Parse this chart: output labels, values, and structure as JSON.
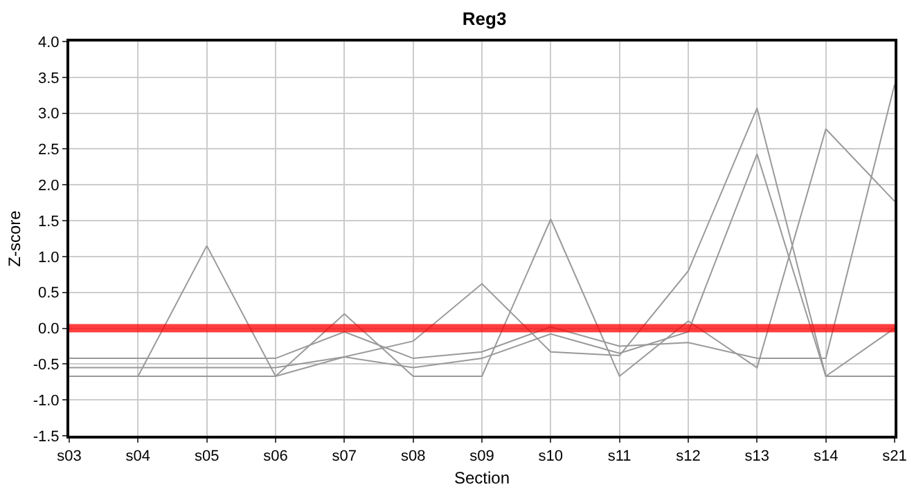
{
  "chart_data": {
    "type": "line",
    "title": "Reg3",
    "xlabel": "Section",
    "ylabel": "Z-score",
    "categories": [
      "s03",
      "s04",
      "s05",
      "s06",
      "s07",
      "s08",
      "s09",
      "s10",
      "s11",
      "s12",
      "s13",
      "s14",
      "s21"
    ],
    "series": [
      {
        "color": "#999999",
        "values": [
          -0.42,
          -0.42,
          -0.42,
          -0.42,
          -0.05,
          -0.42,
          -0.33,
          0.02,
          -0.25,
          -0.2,
          -0.42,
          -0.42,
          3.4
        ]
      },
      {
        "color": "#999999",
        "values": [
          -0.55,
          -0.55,
          -0.55,
          -0.55,
          -0.4,
          -0.55,
          -0.42,
          -0.08,
          -0.35,
          -0.05,
          2.43,
          -0.67,
          0.0
        ]
      },
      {
        "color": "#999999",
        "values": [
          -0.67,
          -0.67,
          1.15,
          -0.67,
          0.2,
          -0.67,
          -0.67,
          1.52,
          -0.67,
          0.1,
          -0.55,
          2.78,
          1.77
        ]
      },
      {
        "color": "#999999",
        "values": [
          -0.67,
          -0.67,
          -0.67,
          -0.67,
          -0.4,
          -0.18,
          0.62,
          -0.33,
          -0.38,
          0.8,
          3.07,
          -0.67,
          -0.67
        ]
      }
    ],
    "ylim": [
      -1.5,
      4.0
    ],
    "yticks": [
      {
        "value": -1.5,
        "label": "-1.5"
      },
      {
        "value": -1,
        "label": "-1.0"
      },
      {
        "value": -0.5,
        "label": "-0.5"
      },
      {
        "value": 0,
        "label": "0.0"
      },
      {
        "value": 0.5,
        "label": "0.5"
      },
      {
        "value": 1,
        "label": "1.0"
      },
      {
        "value": 1.5,
        "label": "1.5"
      },
      {
        "value": 2,
        "label": "2.0"
      },
      {
        "value": 2.5,
        "label": "2.5"
      },
      {
        "value": 3,
        "label": "3.0"
      },
      {
        "value": 3.5,
        "label": "3.5"
      },
      {
        "value": 4,
        "label": "4.0"
      }
    ],
    "ref_lines": [
      {
        "axis": "y",
        "value": 0,
        "color": "#ff0000"
      }
    ],
    "grid": true,
    "marker": "none",
    "line_style": "solid"
  }
}
